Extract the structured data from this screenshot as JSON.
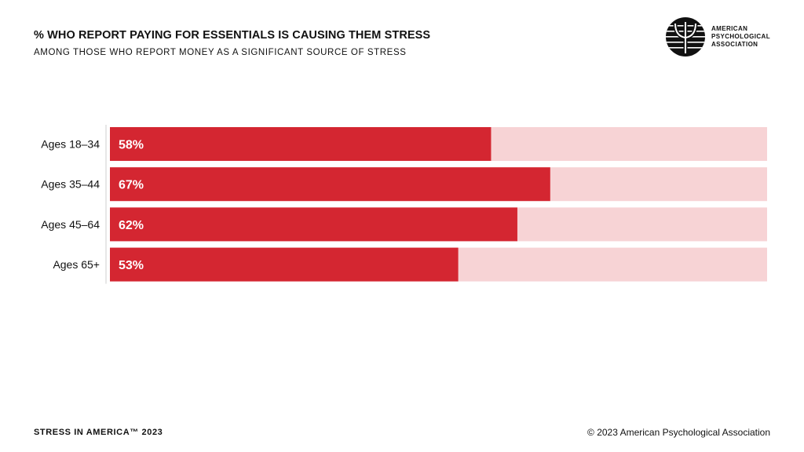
{
  "header": {
    "title": "% WHO REPORT PAYING FOR ESSENTIALS IS CAUSING THEM STRESS",
    "subtitle": "AMONG THOSE WHO REPORT MONEY AS A SIGNIFICANT SOURCE OF STRESS"
  },
  "logo": {
    "icon": "apa-logo-icon",
    "lines": [
      "AMERICAN",
      "PSYCHOLOGICAL",
      "ASSOCIATION"
    ]
  },
  "chart_data": {
    "type": "bar",
    "orientation": "horizontal",
    "categories": [
      "Ages 18–34",
      "Ages 35–44",
      "Ages 45–64",
      "Ages 65+"
    ],
    "values": [
      58,
      67,
      62,
      53
    ],
    "labels": [
      "58%",
      "67%",
      "62%",
      "53%"
    ],
    "xlim": [
      0,
      100
    ],
    "title": "% WHO REPORT PAYING FOR ESSENTIALS IS CAUSING THEM STRESS",
    "subtitle": "AMONG THOSE WHO REPORT MONEY AS A SIGNIFICANT SOURCE OF STRESS",
    "grid": false,
    "colors": {
      "bar": "#d42631",
      "track": "#f7d3d5",
      "label": "#ffffff"
    }
  },
  "footer": {
    "left": "STRESS IN AMERICA™ 2023",
    "right": "© 2023 American Psychological Association"
  }
}
